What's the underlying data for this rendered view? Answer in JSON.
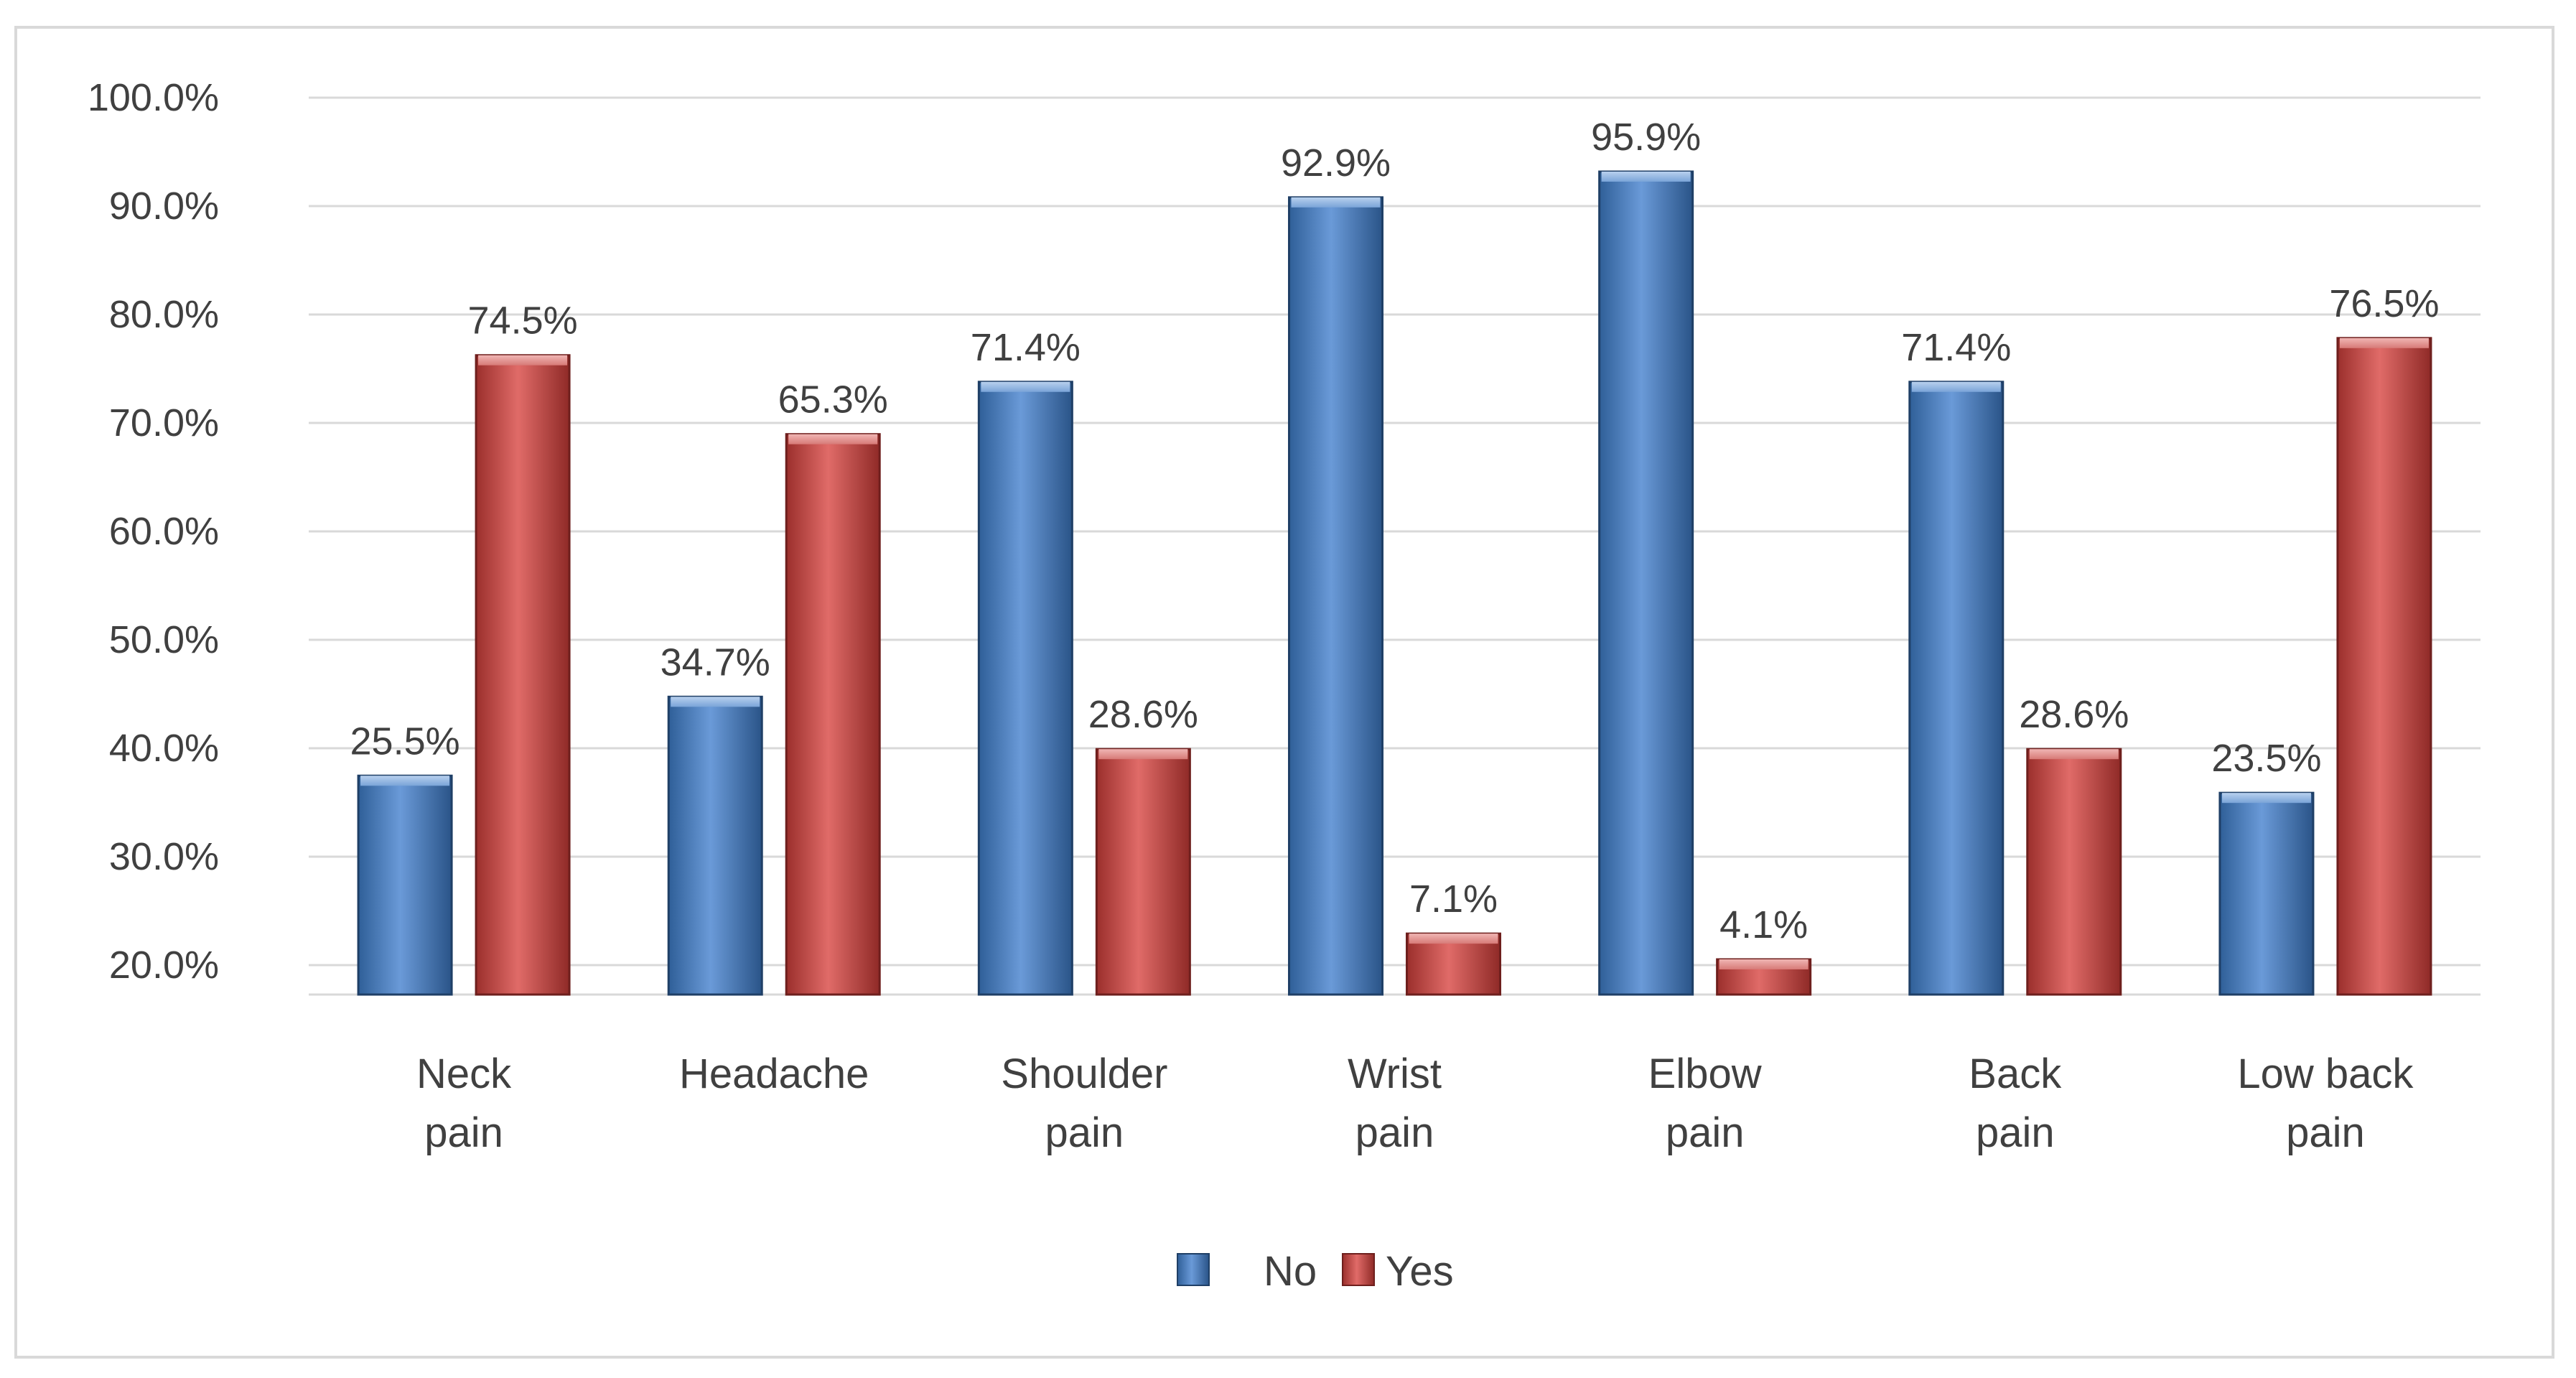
{
  "chart_data": {
    "type": "bar",
    "title": "",
    "xlabel": "",
    "ylabel": "",
    "categories": [
      [
        "Neck",
        "pain"
      ],
      [
        "Headache"
      ],
      [
        "Shoulder",
        "pain"
      ],
      [
        "Wrist",
        "pain"
      ],
      [
        "Elbow",
        "pain"
      ],
      [
        "Back",
        "pain"
      ],
      [
        "Low back",
        "pain"
      ]
    ],
    "series": [
      {
        "name": "No",
        "values": [
          25.5,
          34.7,
          71.4,
          92.9,
          95.9,
          71.4,
          23.5
        ],
        "labels": [
          "25.5%",
          "34.7%",
          "71.4%",
          "92.9%",
          "95.9%",
          "71.4%",
          "23.5%"
        ],
        "color": "#4f81bd"
      },
      {
        "name": "Yes",
        "values": [
          74.5,
          65.3,
          28.6,
          7.1,
          4.1,
          28.6,
          76.5
        ],
        "labels": [
          "74.5%",
          "65.3%",
          "28.6%",
          "7.1%",
          "4.1%",
          "28.6%",
          "76.5%"
        ],
        "color": "#c0504d"
      }
    ],
    "y_ticks": [
      "100.0%",
      "90.0%",
      "80.0%",
      "70.0%",
      "60.0%",
      "50.0%",
      "40.0%",
      "30.0%",
      "20.0%"
    ],
    "grid": true,
    "legend_position": "bottom",
    "bar_style": "3d-cylinder"
  }
}
